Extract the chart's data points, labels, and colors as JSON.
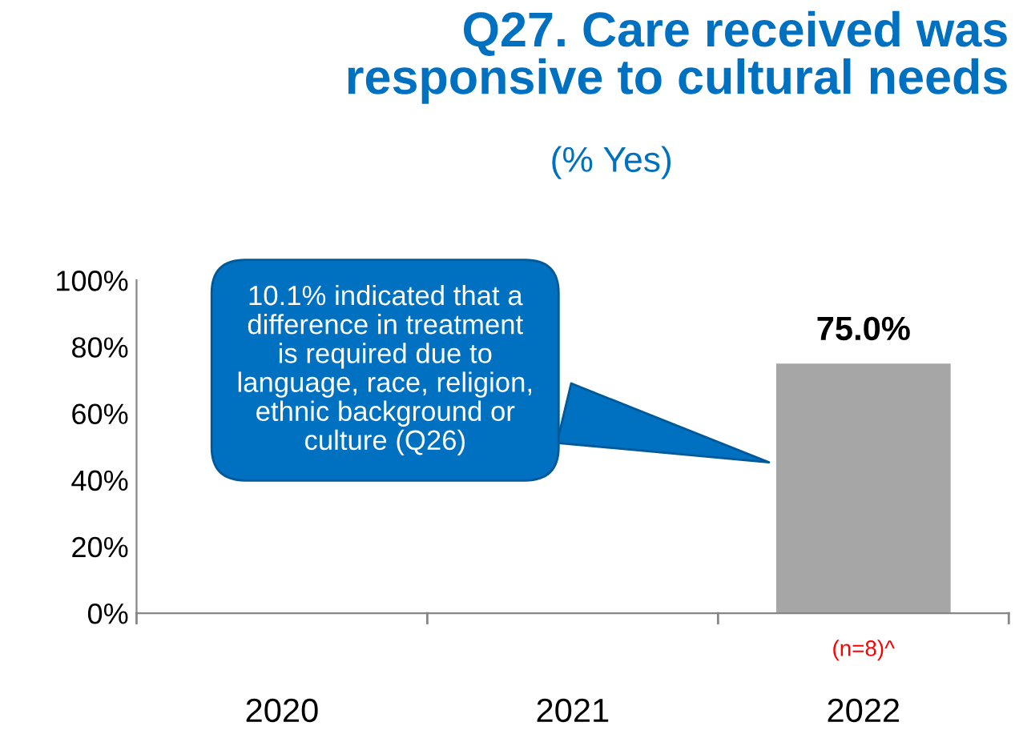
{
  "chart_data": {
    "type": "bar",
    "title": "Q27. Care received was\nresponsive to cultural needs",
    "subtitle": "(% Yes)",
    "categories": [
      "2020",
      "2021",
      "2022"
    ],
    "values": [
      null,
      null,
      75.0
    ],
    "value_labels": [
      null,
      null,
      "75.0%"
    ],
    "color": "#a6a6a6",
    "ylim": [
      0,
      100
    ],
    "yticks": [
      {
        "value": 0,
        "label": "0%"
      },
      {
        "value": 20,
        "label": "20%"
      },
      {
        "value": 40,
        "label": "40%"
      },
      {
        "value": 60,
        "label": "60%"
      },
      {
        "value": 80,
        "label": "80%"
      },
      {
        "value": 100,
        "label": "100%"
      }
    ],
    "grid": false,
    "annotations": [
      "10.1% indicated that a\ndifference in treatment\nis required due to\nlanguage, race, religion,\nethnic background or\nculture (Q26)",
      "(n=8)^"
    ]
  }
}
